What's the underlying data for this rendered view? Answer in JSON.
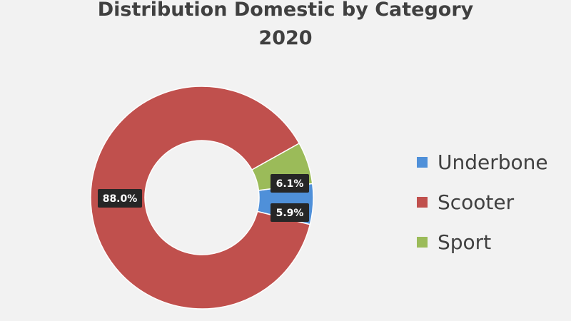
{
  "chart_data": {
    "type": "pie",
    "donut": true,
    "title": "Distribution Domestic by Category",
    "subtitle": "2020",
    "categories": [
      "Underbone",
      "Scooter",
      "Sport"
    ],
    "values": [
      5.9,
      88.0,
      6.1
    ],
    "data_labels": [
      "5.9%",
      "88.0%",
      "6.1%"
    ],
    "colors": [
      "#4f90d9",
      "#c0504d",
      "#9bbb59"
    ],
    "legend": "right",
    "label_style": {
      "background": "#262626",
      "color": "#ffffff"
    }
  }
}
